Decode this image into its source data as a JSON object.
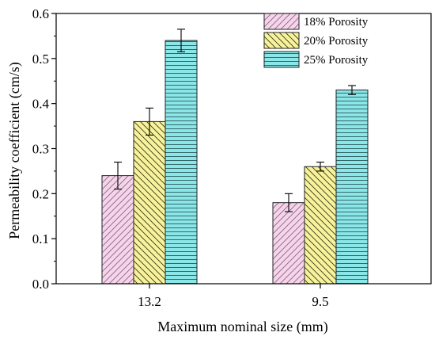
{
  "chart_data": {
    "type": "bar",
    "categories": [
      "13.2",
      "9.5"
    ],
    "series": [
      {
        "name": "18% Porosity",
        "values": [
          0.24,
          0.18
        ],
        "errors": [
          0.03,
          0.02
        ],
        "fill": "#f6d5ec",
        "hatch": "diagonal-up",
        "hatch_color": "#8a6a80"
      },
      {
        "name": "20% Porosity",
        "values": [
          0.36,
          0.26
        ],
        "errors": [
          0.03,
          0.01
        ],
        "fill": "#f7f29b",
        "hatch": "diagonal-down",
        "hatch_color": "#3a3a1a"
      },
      {
        "name": "25% Porosity",
        "values": [
          0.54,
          0.43
        ],
        "errors": [
          0.025,
          0.01
        ],
        "fill": "#8be6e8",
        "hatch": "horizontal",
        "hatch_color": "#2a5a5c"
      }
    ],
    "xlabel": "Maximum nominal size (mm)",
    "ylabel": "Permeability coefficient (cm/s)",
    "ylim": [
      0,
      0.6
    ],
    "yticks": [
      "0.0",
      "0.1",
      "0.2",
      "0.3",
      "0.4",
      "0.5",
      "0.6"
    ],
    "legend_position": "top-right",
    "grid": false
  }
}
